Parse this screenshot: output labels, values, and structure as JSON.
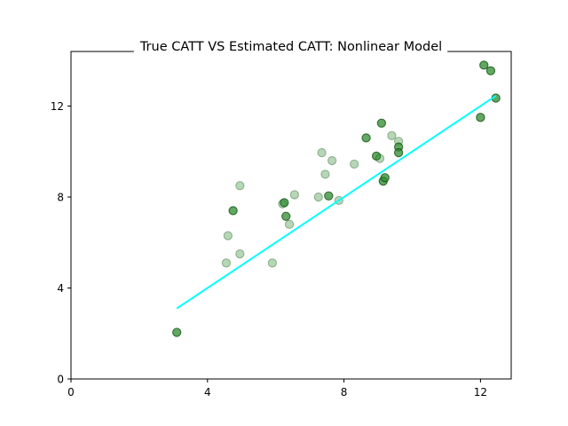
{
  "chart_data": {
    "type": "scatter",
    "title": "True CATT VS Estimated CATT: Nonlinear Model",
    "xlabel": "",
    "ylabel": "",
    "xlim": [
      0,
      12.9
    ],
    "ylim": [
      0,
      14.4
    ],
    "xticks": [
      0,
      4,
      8,
      12
    ],
    "yticks": [
      0,
      4,
      8,
      12
    ],
    "grid": false,
    "colors": {
      "point_fill": "#2e8b2e",
      "point_edge": "#0a4a0a",
      "fit_line": "#00ffff"
    },
    "points": [
      {
        "x": 3.1,
        "y": 2.05,
        "alpha": 0.75
      },
      {
        "x": 4.55,
        "y": 5.1,
        "alpha": 0.35
      },
      {
        "x": 4.6,
        "y": 6.3,
        "alpha": 0.35
      },
      {
        "x": 4.75,
        "y": 7.4,
        "alpha": 0.75
      },
      {
        "x": 4.95,
        "y": 8.5,
        "alpha": 0.35
      },
      {
        "x": 4.95,
        "y": 5.5,
        "alpha": 0.35
      },
      {
        "x": 5.9,
        "y": 5.1,
        "alpha": 0.35
      },
      {
        "x": 6.2,
        "y": 7.7,
        "alpha": 0.35
      },
      {
        "x": 6.25,
        "y": 7.75,
        "alpha": 0.75
      },
      {
        "x": 6.3,
        "y": 7.15,
        "alpha": 0.75
      },
      {
        "x": 6.4,
        "y": 6.8,
        "alpha": 0.35
      },
      {
        "x": 6.55,
        "y": 8.1,
        "alpha": 0.35
      },
      {
        "x": 7.25,
        "y": 8.0,
        "alpha": 0.35
      },
      {
        "x": 7.35,
        "y": 9.95,
        "alpha": 0.35
      },
      {
        "x": 7.45,
        "y": 9.0,
        "alpha": 0.35
      },
      {
        "x": 7.55,
        "y": 8.05,
        "alpha": 0.75
      },
      {
        "x": 7.65,
        "y": 9.6,
        "alpha": 0.35
      },
      {
        "x": 7.85,
        "y": 7.85,
        "alpha": 0.35
      },
      {
        "x": 8.3,
        "y": 9.45,
        "alpha": 0.35
      },
      {
        "x": 8.65,
        "y": 10.6,
        "alpha": 0.75
      },
      {
        "x": 8.95,
        "y": 9.8,
        "alpha": 0.75
      },
      {
        "x": 9.05,
        "y": 9.7,
        "alpha": 0.35
      },
      {
        "x": 9.1,
        "y": 11.25,
        "alpha": 0.75
      },
      {
        "x": 9.15,
        "y": 8.7,
        "alpha": 0.75
      },
      {
        "x": 9.2,
        "y": 8.85,
        "alpha": 0.75
      },
      {
        "x": 9.4,
        "y": 10.7,
        "alpha": 0.35
      },
      {
        "x": 9.6,
        "y": 10.45,
        "alpha": 0.35
      },
      {
        "x": 9.6,
        "y": 10.2,
        "alpha": 0.75
      },
      {
        "x": 9.6,
        "y": 9.95,
        "alpha": 0.75
      },
      {
        "x": 12.0,
        "y": 11.5,
        "alpha": 0.75
      },
      {
        "x": 12.1,
        "y": 13.8,
        "alpha": 0.75
      },
      {
        "x": 12.3,
        "y": 13.55,
        "alpha": 0.75
      },
      {
        "x": 12.45,
        "y": 12.35,
        "alpha": 0.75
      }
    ],
    "fit_line": {
      "x": [
        3.1,
        12.45
      ],
      "y": [
        3.1,
        12.45
      ]
    }
  }
}
